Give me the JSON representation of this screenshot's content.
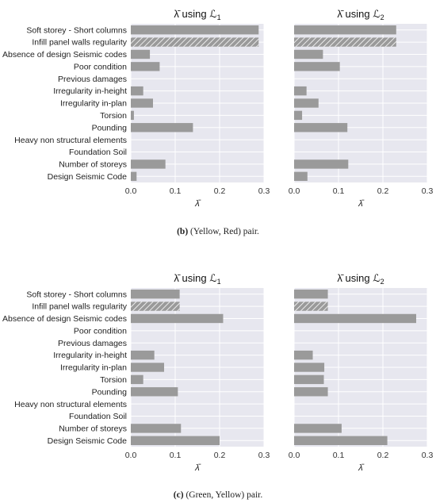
{
  "chart_data": [
    {
      "type": "bar",
      "orientation": "horizontal",
      "title_prefix": "λ̄ using ",
      "title_symbol": "ℒ",
      "title_subscript": "1",
      "xlabel": "λ̄",
      "xlim": [
        0,
        0.3
      ],
      "xticks": [
        "0.0",
        "0.1",
        "0.2",
        "0.3"
      ],
      "grid": true,
      "categories": [
        "Soft storey - Short columns",
        "Infill panel walls regularity",
        "Absence of design Seismic codes",
        "Poor condition",
        "Previous damages",
        "Irregularity in-height",
        "Irregularity in-plan",
        "Torsion",
        "Pounding",
        "Heavy non structural elements",
        "Foundation Soil",
        "Number of storeys",
        "Design Seismic Code"
      ],
      "values": [
        0.288,
        0.288,
        0.043,
        0.065,
        0,
        0.028,
        0.05,
        0.007,
        0.14,
        0,
        0,
        0.078,
        0.013
      ],
      "hatched": [
        false,
        true,
        false,
        false,
        false,
        false,
        false,
        false,
        false,
        false,
        false,
        false,
        false
      ],
      "colors": {
        "bar": "#9a9a9a",
        "background": "#e7e7ef",
        "grid": "#ffffff"
      }
    },
    {
      "type": "bar",
      "orientation": "horizontal",
      "title_prefix": "λ̄ using ",
      "title_symbol": "ℒ",
      "title_subscript": "2",
      "xlabel": "λ̄",
      "xlim": [
        0,
        0.3
      ],
      "xticks": [
        "0.0",
        "0.1",
        "0.2",
        "0.3"
      ],
      "grid": true,
      "categories": [
        "Soft storey - Short columns",
        "Infill panel walls regularity",
        "Absence of design Seismic codes",
        "Poor condition",
        "Previous damages",
        "Irregularity in-height",
        "Irregularity in-plan",
        "Torsion",
        "Pounding",
        "Heavy non structural elements",
        "Foundation Soil",
        "Number of storeys",
        "Design Seismic Code"
      ],
      "values": [
        0.23,
        0.23,
        0.065,
        0.103,
        0,
        0.028,
        0.055,
        0.018,
        0.12,
        0,
        0,
        0.122,
        0.03
      ],
      "hatched": [
        false,
        true,
        false,
        false,
        false,
        false,
        false,
        false,
        false,
        false,
        false,
        false,
        false
      ],
      "colors": {
        "bar": "#9a9a9a",
        "background": "#e7e7ef",
        "grid": "#ffffff"
      }
    },
    {
      "type": "bar",
      "orientation": "horizontal",
      "title_prefix": "λ̄ using ",
      "title_symbol": "ℒ",
      "title_subscript": "1",
      "xlabel": "λ̄",
      "xlim": [
        0,
        0.3
      ],
      "xticks": [
        "0.0",
        "0.1",
        "0.2",
        "0.3"
      ],
      "grid": true,
      "categories": [
        "Soft storey - Short columns",
        "Infill panel walls regularity",
        "Absence of design Seismic codes",
        "Poor condition",
        "Previous damages",
        "Irregularity in-height",
        "Irregularity in-plan",
        "Torsion",
        "Pounding",
        "Heavy non structural elements",
        "Foundation Soil",
        "Number of storeys",
        "Design Seismic Code"
      ],
      "values": [
        0.11,
        0.11,
        0.208,
        0,
        0,
        0.053,
        0.075,
        0.028,
        0.106,
        0,
        0,
        0.113,
        0.2
      ],
      "hatched": [
        false,
        true,
        false,
        false,
        false,
        false,
        false,
        false,
        false,
        false,
        false,
        false,
        false
      ],
      "colors": {
        "bar": "#9a9a9a",
        "background": "#e7e7ef",
        "grid": "#ffffff"
      }
    },
    {
      "type": "bar",
      "orientation": "horizontal",
      "title_prefix": "λ̄ using ",
      "title_symbol": "ℒ",
      "title_subscript": "2",
      "xlabel": "λ̄",
      "xlim": [
        0,
        0.3
      ],
      "xticks": [
        "0.0",
        "0.1",
        "0.2",
        "0.3"
      ],
      "grid": true,
      "categories": [
        "Soft storey - Short columns",
        "Infill panel walls regularity",
        "Absence of design Seismic codes",
        "Poor condition",
        "Previous damages",
        "Irregularity in-height",
        "Irregularity in-plan",
        "Torsion",
        "Pounding",
        "Heavy non structural elements",
        "Foundation Soil",
        "Number of storeys",
        "Design Seismic Code"
      ],
      "values": [
        0.076,
        0.076,
        0.275,
        0,
        0,
        0.042,
        0.068,
        0.067,
        0.076,
        0,
        0,
        0.107,
        0.21
      ],
      "hatched": [
        false,
        true,
        false,
        false,
        false,
        false,
        false,
        false,
        false,
        false,
        false,
        false,
        false
      ],
      "colors": {
        "bar": "#9a9a9a",
        "background": "#e7e7ef",
        "grid": "#ffffff"
      }
    }
  ],
  "captions": {
    "b_label": "b",
    "b_text": "(Yellow, Red) pair.",
    "c_label": "c",
    "c_text": "(Green, Yellow) pair."
  }
}
